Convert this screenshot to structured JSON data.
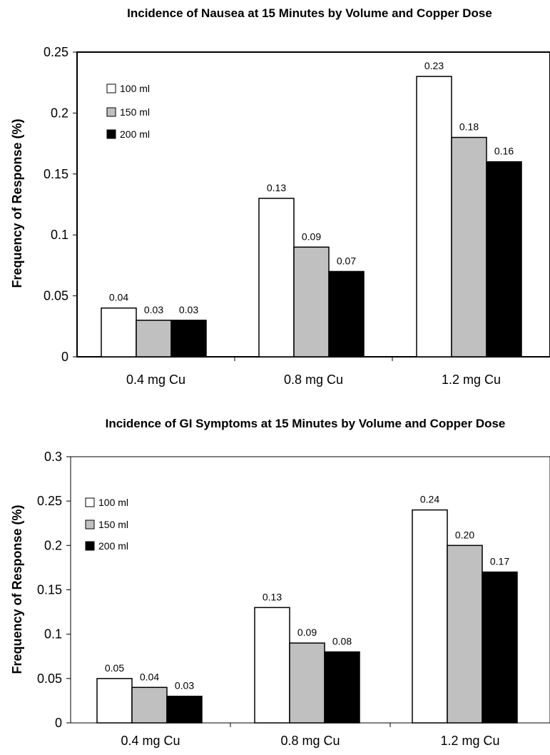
{
  "chart_data": [
    {
      "type": "bar",
      "title": "Incidence of Nausea at 15 Minutes by Volume and Copper Dose",
      "xlabel": "",
      "ylabel": "Frequency of Response (%)",
      "ylim": [
        0,
        0.25
      ],
      "yticks": [
        "0",
        "0.05",
        "0.1",
        "0.15",
        "0.2",
        "0.25"
      ],
      "yticks_values": [
        0,
        0.05,
        0.1,
        0.15,
        0.2,
        0.25
      ],
      "categories": [
        "0.4 mg Cu",
        "0.8 mg Cu",
        "1.2 mg Cu"
      ],
      "series": [
        {
          "name": "100 ml",
          "color": "#ffffff",
          "values": [
            0.04,
            0.13,
            0.23
          ],
          "labels": [
            "0.04",
            "0.13",
            "0.23"
          ]
        },
        {
          "name": "150 ml",
          "color": "#c0c0c0",
          "values": [
            0.03,
            0.09,
            0.18
          ],
          "labels": [
            "0.03",
            "0.09",
            "0.18"
          ]
        },
        {
          "name": "200 ml",
          "color": "#000000",
          "values": [
            0.03,
            0.07,
            0.16
          ],
          "labels": [
            "0.03",
            "0.07",
            "0.16"
          ]
        }
      ],
      "legend": "top-left",
      "grid": false
    },
    {
      "type": "bar",
      "title": "Incidence of GI Symptoms at 15 Minutes by Volume and Copper Dose",
      "xlabel": "",
      "ylabel": "Frequency of Response (%)",
      "ylim": [
        0,
        0.3
      ],
      "yticks": [
        "0",
        "0.05",
        "0.1",
        "0.15",
        "0.2",
        "0.25",
        "0.3"
      ],
      "yticks_values": [
        0,
        0.05,
        0.1,
        0.15,
        0.2,
        0.25,
        0.3
      ],
      "categories": [
        "0.4 mg Cu",
        "0.8 mg Cu",
        "1.2 mg Cu"
      ],
      "series": [
        {
          "name": "100 ml",
          "color": "#ffffff",
          "values": [
            0.05,
            0.13,
            0.24
          ],
          "labels": [
            "0.05",
            "0.13",
            "0.24"
          ]
        },
        {
          "name": "150 ml",
          "color": "#c0c0c0",
          "values": [
            0.04,
            0.09,
            0.2
          ],
          "labels": [
            "0.04",
            "0.09",
            "0.20"
          ]
        },
        {
          "name": "200 ml",
          "color": "#000000",
          "values": [
            0.03,
            0.08,
            0.17
          ],
          "labels": [
            "0.03",
            "0.08",
            "0.17"
          ]
        }
      ],
      "legend": "top-left",
      "grid": false
    }
  ]
}
